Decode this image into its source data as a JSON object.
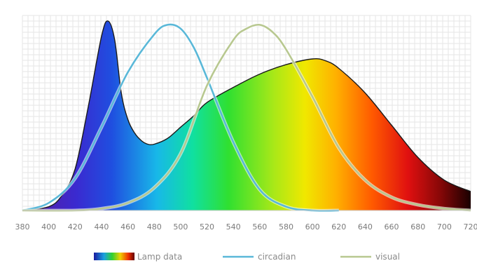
{
  "chart_data": {
    "type": "area",
    "xlabel": "",
    "ylabel": "",
    "xlim": [
      380,
      720
    ],
    "ylim": [
      0,
      1
    ],
    "grid": true,
    "legend_position": "bottom",
    "x_ticks": [
      380,
      400,
      420,
      440,
      460,
      480,
      500,
      520,
      540,
      560,
      580,
      600,
      620,
      640,
      660,
      680,
      700,
      720
    ],
    "series": [
      {
        "name": "Lamp data",
        "style": "spectral-fill",
        "x": [
          380,
          400,
          410,
          420,
          430,
          440,
          445,
          450,
          455,
          460,
          465,
          470,
          475,
          480,
          490,
          500,
          510,
          520,
          540,
          560,
          580,
          600,
          610,
          620,
          640,
          660,
          680,
          700,
          720
        ],
        "y": [
          0.0,
          0.02,
          0.08,
          0.22,
          0.55,
          0.92,
          1.0,
          0.9,
          0.62,
          0.48,
          0.41,
          0.37,
          0.35,
          0.35,
          0.38,
          0.44,
          0.5,
          0.57,
          0.65,
          0.72,
          0.77,
          0.8,
          0.79,
          0.75,
          0.62,
          0.45,
          0.28,
          0.16,
          0.1
        ]
      },
      {
        "name": "circadian",
        "color": "#5ab8d8",
        "x": [
          380,
          400,
          420,
          440,
          460,
          480,
          490,
          500,
          510,
          520,
          540,
          560,
          580,
          600,
          620
        ],
        "y": [
          0.0,
          0.04,
          0.17,
          0.44,
          0.73,
          0.93,
          0.98,
          0.96,
          0.86,
          0.7,
          0.36,
          0.11,
          0.02,
          0.0,
          0.0
        ]
      },
      {
        "name": "visual",
        "color": "#b8c890",
        "x": [
          380,
          420,
          440,
          460,
          480,
          500,
          520,
          540,
          550,
          560,
          570,
          580,
          600,
          620,
          640,
          660,
          680,
          700,
          720
        ],
        "y": [
          0.0,
          0.0,
          0.01,
          0.04,
          0.12,
          0.3,
          0.66,
          0.9,
          0.96,
          0.98,
          0.94,
          0.85,
          0.6,
          0.33,
          0.16,
          0.07,
          0.03,
          0.01,
          0.0
        ]
      }
    ]
  }
}
